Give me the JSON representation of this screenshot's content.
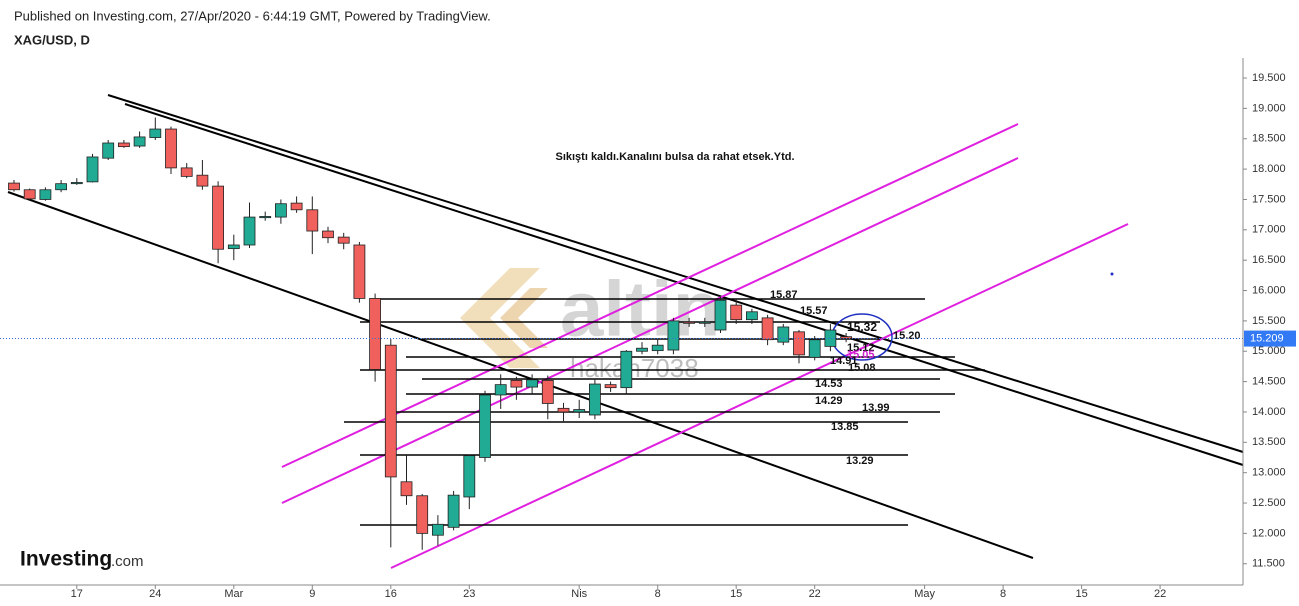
{
  "chart_data": {
    "type": "candlestick",
    "header": "Published on Investing.com, 27/Apr/2020 - 6:44:19 GMT, Powered by TradingView.",
    "symbol": "XAG/USD, D",
    "annotation": "Sıkıştı kaldı.Kanalını bulsa da rahat etsek.Ytd.",
    "watermark_logo": "altin",
    "watermark_user": "hakan7038",
    "brand": "Investing",
    "brand_suffix": ".com",
    "level_labels": [
      "15.87",
      "15.57",
      "15.32",
      "15.20",
      "15.12",
      "15.05",
      "14.91",
      "15.08",
      "14.53",
      "14.29",
      "13.99",
      "13.85",
      "13.29"
    ],
    "up_color": "#22ab94",
    "down_color": "#f0605d",
    "last_price": 15.209,
    "ylim": [
      11.15,
      19.83
    ],
    "yticks": [
      {
        "value": 11.5,
        "label": "11.500"
      },
      {
        "value": 12,
        "label": "12.000"
      },
      {
        "value": 12.5,
        "label": "12.500"
      },
      {
        "value": 13,
        "label": "13.000"
      },
      {
        "value": 13.5,
        "label": "13.500"
      },
      {
        "value": 14,
        "label": "14.000"
      },
      {
        "value": 14.5,
        "label": "14.500"
      },
      {
        "value": 15,
        "label": "15.000"
      },
      {
        "value": 15.5,
        "label": "15.500"
      },
      {
        "value": 16,
        "label": "16.000"
      },
      {
        "value": 16.5,
        "label": "16.500"
      },
      {
        "value": 17,
        "label": "17.000"
      },
      {
        "value": 17.5,
        "label": "17.500"
      },
      {
        "value": 18,
        "label": "18.000"
      },
      {
        "value": 18.5,
        "label": "18.500"
      },
      {
        "value": 19,
        "label": "19.000"
      },
      {
        "value": 19.5,
        "label": "19.500"
      }
    ],
    "categories": [
      null,
      null,
      null,
      null,
      "17",
      null,
      null,
      null,
      null,
      "24",
      null,
      null,
      null,
      null,
      "Mar",
      null,
      null,
      null,
      null,
      "9",
      null,
      null,
      null,
      null,
      "16",
      null,
      null,
      null,
      null,
      "23",
      null,
      null,
      null,
      null,
      null,
      null,
      "Nis",
      null,
      null,
      null,
      null,
      "8",
      null,
      null,
      null,
      null,
      "15",
      null,
      null,
      null,
      null,
      "22",
      null,
      null,
      null,
      null,
      null,
      null,
      "May",
      null,
      null,
      null,
      null,
      "8",
      null,
      null,
      null,
      null,
      "15",
      null,
      null,
      null,
      null,
      "22",
      null,
      null,
      null,
      null,
      null
    ],
    "open": [
      17.77,
      17.66,
      17.5,
      17.66,
      17.76,
      17.79,
      18.18,
      18.43,
      18.38,
      18.52,
      18.66,
      18.02,
      17.9,
      17.72,
      16.69,
      16.75,
      17.2,
      17.21,
      17.44,
      17.33,
      16.98,
      16.88,
      16.75,
      15.87,
      15.1,
      12.85,
      12.62,
      11.97,
      12.1,
      12.6,
      13.25,
      14.28,
      14.52,
      14.41,
      14.52,
      14.06,
      14.0,
      13.95,
      14.45,
      14.4,
      15.0,
      15.01,
      15.02,
      15.48,
      15.46,
      15.35,
      15.76,
      15.52,
      15.55,
      15.15,
      15.32,
      14.9,
      15.08,
      15.24,
      null,
      null,
      null,
      null,
      null,
      null,
      null,
      null,
      null,
      null,
      null,
      null,
      null,
      null,
      null,
      null,
      null,
      null,
      null,
      null,
      null,
      null,
      null,
      null,
      null
    ],
    "high": [
      17.82,
      17.68,
      17.7,
      17.82,
      17.85,
      18.25,
      18.48,
      18.48,
      18.62,
      18.85,
      18.7,
      18.1,
      18.15,
      17.8,
      16.92,
      17.45,
      17.3,
      17.5,
      17.55,
      17.55,
      17.05,
      16.95,
      16.8,
      15.95,
      15.2,
      13.28,
      12.65,
      12.3,
      12.7,
      13.3,
      14.35,
      14.62,
      14.58,
      14.62,
      14.6,
      14.15,
      14.2,
      14.55,
      14.5,
      15.02,
      15.15,
      15.2,
      15.55,
      15.55,
      15.55,
      15.9,
      15.85,
      15.7,
      15.6,
      15.45,
      15.35,
      15.25,
      15.45,
      15.3,
      null,
      null,
      null,
      null,
      null,
      null,
      null,
      null,
      null,
      null,
      null,
      null,
      null,
      null,
      null,
      null,
      null,
      null,
      null,
      null,
      null,
      null,
      null,
      null,
      null
    ],
    "low": [
      17.63,
      17.48,
      17.48,
      17.62,
      17.74,
      17.78,
      18.15,
      18.35,
      18.35,
      18.48,
      17.92,
      17.85,
      17.66,
      16.45,
      16.5,
      16.7,
      17.15,
      17.1,
      17.28,
      16.6,
      16.78,
      16.68,
      15.8,
      14.5,
      11.77,
      12.47,
      11.73,
      11.8,
      12.05,
      12.4,
      13.18,
      14.05,
      14.2,
      14.3,
      13.88,
      13.85,
      13.9,
      13.88,
      14.33,
      14.3,
      14.95,
      14.95,
      14.95,
      15.4,
      15.4,
      15.3,
      15.45,
      15.45,
      15.1,
      15.1,
      14.8,
      14.85,
      15.0,
      15.15,
      null,
      null,
      null,
      null,
      null,
      null,
      null,
      null,
      null,
      null,
      null,
      null,
      null,
      null,
      null,
      null,
      null,
      null,
      null,
      null,
      null,
      null,
      null,
      null,
      null
    ],
    "close": [
      17.66,
      17.51,
      17.66,
      17.76,
      17.78,
      18.2,
      18.43,
      18.37,
      18.53,
      18.66,
      18.02,
      17.88,
      17.72,
      16.68,
      16.75,
      17.21,
      17.22,
      17.43,
      17.33,
      16.98,
      16.87,
      16.78,
      15.87,
      14.7,
      12.93,
      12.62,
      12.0,
      12.15,
      12.63,
      13.28,
      14.28,
      14.45,
      14.41,
      14.53,
      14.14,
      14.0,
      14.04,
      14.46,
      14.4,
      15.0,
      15.05,
      15.1,
      15.5,
      15.46,
      15.48,
      15.84,
      15.52,
      15.65,
      15.19,
      15.4,
      14.94,
      15.19,
      15.35,
      15.21,
      null,
      null,
      null,
      null,
      null,
      null,
      null,
      null,
      null,
      null,
      null,
      null,
      null,
      null,
      null,
      null,
      null,
      null,
      null,
      null,
      null,
      null,
      null,
      null,
      null
    ]
  }
}
